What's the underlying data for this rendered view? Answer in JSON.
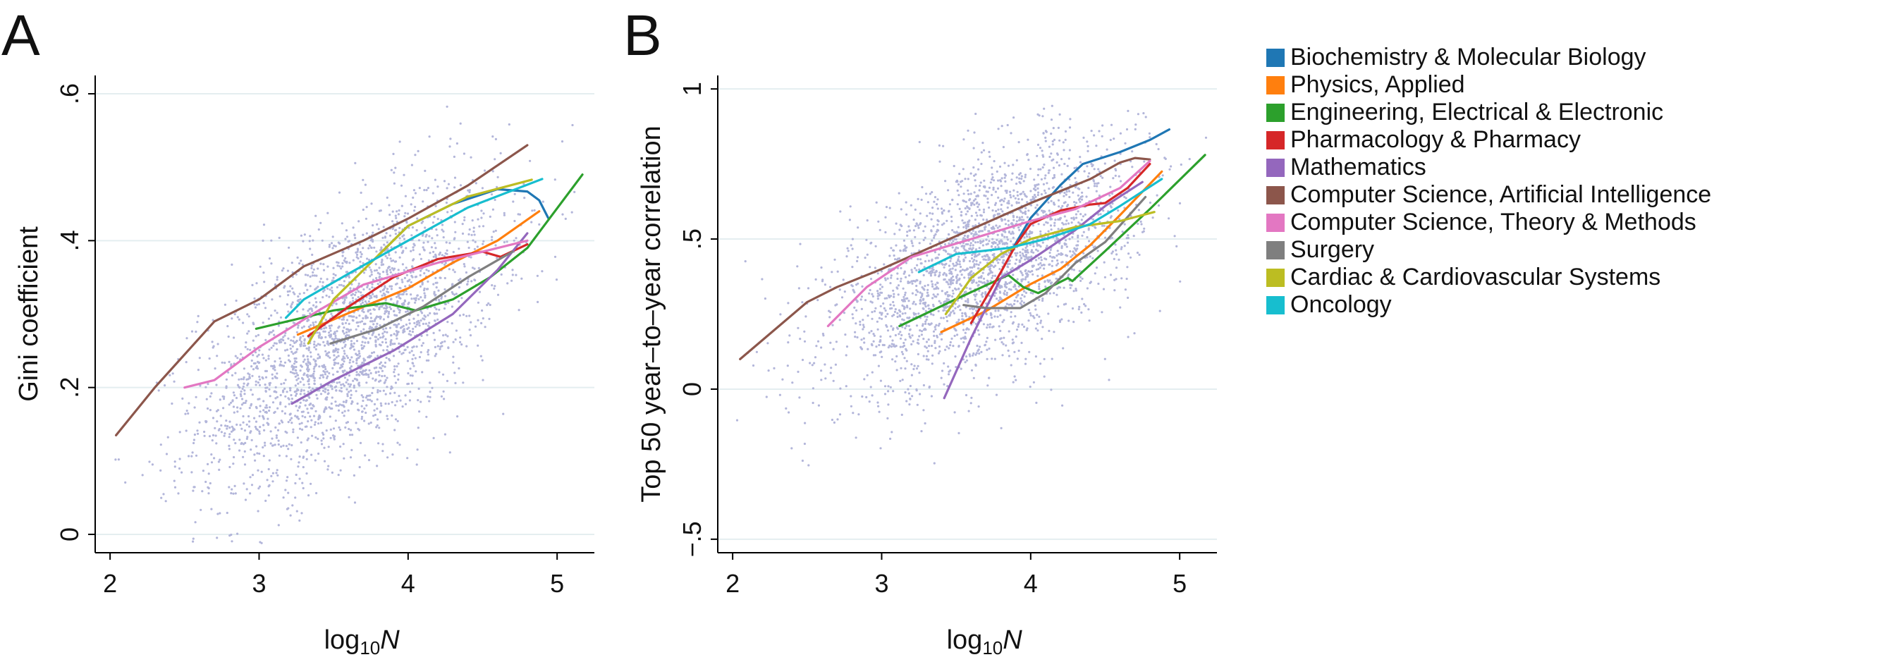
{
  "chart_data": [
    {
      "type": "line",
      "panel_label": "A",
      "xlabel": {
        "base": "log",
        "sub": "10",
        "var": "N"
      },
      "ylabel": "Gini coefficient",
      "xlim": [
        1.9,
        5.25
      ],
      "ylim": [
        -0.025,
        0.625
      ],
      "xticks": [
        2,
        3,
        4,
        5
      ],
      "xtick_labels": [
        "2",
        "3",
        "4",
        "5"
      ],
      "yticks": [
        0,
        0.2,
        0.4,
        0.6
      ],
      "ytick_labels": [
        "0",
        ".2",
        ".4",
        ".6"
      ],
      "grid": "horizontal",
      "background_scatter": {
        "color": "#b3b6da",
        "center": [
          3.6,
          0.27
        ],
        "spread": [
          0.5,
          0.1
        ],
        "corr": 0.6
      },
      "series": [
        {
          "name": "Biochemistry & Molecular Biology",
          "x": [
            3.8,
            4.0,
            4.3,
            4.6,
            4.8,
            4.88,
            4.94
          ],
          "y": [
            0.38,
            0.42,
            0.45,
            0.47,
            0.467,
            0.455,
            0.431
          ]
        },
        {
          "name": "Physics, Applied",
          "x": [
            3.26,
            3.7,
            4.0,
            4.3,
            4.6,
            4.88
          ],
          "y": [
            0.272,
            0.31,
            0.335,
            0.37,
            0.4,
            0.44
          ]
        },
        {
          "name": "Engineering, Electrical & Electronic",
          "x": [
            2.98,
            3.5,
            3.85,
            4.05,
            4.3,
            4.55,
            4.8,
            5.17
          ],
          "y": [
            0.28,
            0.305,
            0.315,
            0.305,
            0.32,
            0.35,
            0.39,
            0.49
          ]
        },
        {
          "name": "Pharmacology & Pharmacy",
          "x": [
            3.33,
            3.6,
            3.9,
            4.2,
            4.5,
            4.62,
            4.8
          ],
          "y": [
            0.27,
            0.31,
            0.35,
            0.375,
            0.385,
            0.378,
            0.395
          ]
        },
        {
          "name": "Mathematics",
          "x": [
            3.22,
            3.5,
            3.9,
            4.3,
            4.6,
            4.8
          ],
          "y": [
            0.178,
            0.21,
            0.25,
            0.3,
            0.36,
            0.41
          ]
        },
        {
          "name": "Computer Science, Artificial Intelligence",
          "x": [
            2.04,
            2.3,
            2.7,
            3.0,
            3.3,
            3.7,
            4.0,
            4.4,
            4.8
          ],
          "y": [
            0.135,
            0.2,
            0.29,
            0.32,
            0.365,
            0.4,
            0.43,
            0.475,
            0.53
          ]
        },
        {
          "name": "Computer Science, Theory & Methods",
          "x": [
            2.5,
            2.7,
            3.0,
            3.4,
            3.7,
            4.2,
            4.6,
            4.8
          ],
          "y": [
            0.2,
            0.21,
            0.255,
            0.305,
            0.34,
            0.37,
            0.39,
            0.4
          ]
        },
        {
          "name": "Surgery",
          "x": [
            3.48,
            3.8,
            4.1,
            4.4,
            4.7
          ],
          "y": [
            0.26,
            0.28,
            0.31,
            0.35,
            0.385
          ]
        },
        {
          "name": "Cardiac & Cardiovascular Systems",
          "x": [
            3.33,
            3.5,
            3.8,
            4.0,
            4.4,
            4.83
          ],
          "y": [
            0.26,
            0.32,
            0.38,
            0.42,
            0.46,
            0.483
          ]
        },
        {
          "name": "Oncology",
          "x": [
            3.18,
            3.3,
            3.6,
            4.0,
            4.4,
            4.9
          ],
          "y": [
            0.295,
            0.32,
            0.355,
            0.4,
            0.445,
            0.484
          ]
        }
      ]
    },
    {
      "type": "line",
      "panel_label": "B",
      "xlabel": {
        "base": "log",
        "sub": "10",
        "var": "N"
      },
      "ylabel": "Top 50 year–to–year correlation",
      "xlim": [
        1.9,
        5.25
      ],
      "ylim": [
        -0.545,
        1.045
      ],
      "xticks": [
        2,
        3,
        4,
        5
      ],
      "xtick_labels": [
        "2",
        "3",
        "4",
        "5"
      ],
      "yticks": [
        -0.5,
        0,
        0.5,
        1
      ],
      "ytick_labels": [
        "−.5",
        "0",
        ".5",
        "1"
      ],
      "grid": "horizontal",
      "background_scatter": {
        "color": "#b3b6da",
        "center": [
          3.7,
          0.42
        ],
        "spread": [
          0.5,
          0.2
        ],
        "corr": 0.55
      },
      "series": [
        {
          "name": "Biochemistry & Molecular Biology",
          "x": [
            3.87,
            4.0,
            4.2,
            4.35,
            4.6,
            4.8,
            4.93
          ],
          "y": [
            0.46,
            0.57,
            0.68,
            0.75,
            0.79,
            0.83,
            0.865
          ]
        },
        {
          "name": "Physics, Applied",
          "x": [
            3.4,
            3.7,
            4.0,
            4.2,
            4.4,
            4.6,
            4.88
          ],
          "y": [
            0.19,
            0.26,
            0.35,
            0.4,
            0.48,
            0.58,
            0.725
          ]
        },
        {
          "name": "Engineering, Electrical & Electronic",
          "x": [
            3.12,
            3.5,
            3.85,
            3.95,
            4.05,
            4.25,
            4.28,
            4.5,
            4.8,
            5.17
          ],
          "y": [
            0.21,
            0.3,
            0.38,
            0.34,
            0.32,
            0.37,
            0.36,
            0.46,
            0.6,
            0.78
          ]
        },
        {
          "name": "Pharmacology & Pharmacy",
          "x": [
            3.6,
            3.8,
            3.9,
            4.0,
            4.2,
            4.4,
            4.5,
            4.65,
            4.8
          ],
          "y": [
            0.22,
            0.39,
            0.48,
            0.55,
            0.595,
            0.615,
            0.62,
            0.67,
            0.75
          ]
        },
        {
          "name": "Mathematics",
          "x": [
            3.42,
            3.6,
            3.8,
            4.0,
            4.3,
            4.5,
            4.75
          ],
          "y": [
            -0.03,
            0.17,
            0.37,
            0.43,
            0.53,
            0.61,
            0.69
          ]
        },
        {
          "name": "Computer Science, Artificial Intelligence",
          "x": [
            2.05,
            2.5,
            2.7,
            3.0,
            3.5,
            4.0,
            4.4,
            4.6,
            4.7,
            4.8
          ],
          "y": [
            0.1,
            0.29,
            0.34,
            0.4,
            0.51,
            0.62,
            0.7,
            0.755,
            0.77,
            0.765
          ]
        },
        {
          "name": "Computer Science, Theory & Methods",
          "x": [
            2.64,
            2.9,
            3.2,
            3.4,
            3.6,
            4.0,
            4.3,
            4.6,
            4.8
          ],
          "y": [
            0.21,
            0.34,
            0.44,
            0.47,
            0.5,
            0.56,
            0.6,
            0.67,
            0.76
          ]
        },
        {
          "name": "Surgery",
          "x": [
            3.55,
            3.7,
            3.93,
            4.1,
            4.3,
            4.5,
            4.77
          ],
          "y": [
            0.28,
            0.27,
            0.27,
            0.32,
            0.42,
            0.49,
            0.64
          ]
        },
        {
          "name": "Cardiac & Cardiovascular Systems",
          "x": [
            3.43,
            3.6,
            3.8,
            4.0,
            4.3,
            4.6,
            4.83
          ],
          "y": [
            0.25,
            0.37,
            0.45,
            0.5,
            0.54,
            0.56,
            0.59
          ]
        },
        {
          "name": "Oncology",
          "x": [
            3.25,
            3.5,
            3.85,
            4.1,
            4.4,
            4.6,
            4.88
          ],
          "y": [
            0.39,
            0.45,
            0.47,
            0.5,
            0.55,
            0.61,
            0.7
          ]
        }
      ]
    }
  ],
  "legend": {
    "placement": "right",
    "items": [
      {
        "label": "Biochemistry & Molecular Biology",
        "color": "#1f77b4"
      },
      {
        "label": "Physics, Applied",
        "color": "#ff7f0e"
      },
      {
        "label": "Engineering, Electrical & Electronic",
        "color": "#2ca02c"
      },
      {
        "label": "Pharmacology & Pharmacy",
        "color": "#d62728"
      },
      {
        "label": "Mathematics",
        "color": "#9467bd"
      },
      {
        "label": "Computer Science, Artificial Intelligence",
        "color": "#8c564b"
      },
      {
        "label": "Computer Science, Theory & Methods",
        "color": "#e377c2"
      },
      {
        "label": "Surgery",
        "color": "#7f7f7f"
      },
      {
        "label": "Cardiac & Cardiovascular Systems",
        "color": "#bcbd22"
      },
      {
        "label": "Oncology",
        "color": "#17becf"
      }
    ]
  }
}
